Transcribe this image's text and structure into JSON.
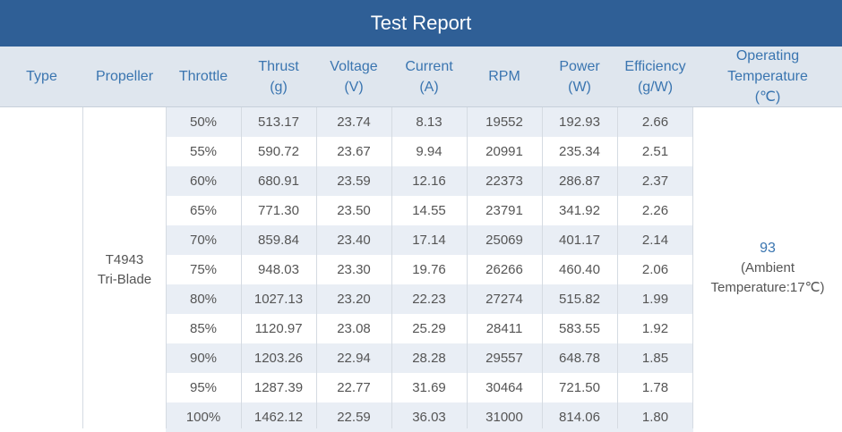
{
  "title": "Test Report",
  "headers": {
    "type": [
      "Type"
    ],
    "propeller": [
      "Propeller"
    ],
    "throttle": [
      "Throttle"
    ],
    "thrust": [
      "Thrust",
      "(g)"
    ],
    "voltage": [
      "Voltage",
      "(V)"
    ],
    "current": [
      "Current",
      "(A)"
    ],
    "rpm": [
      "RPM"
    ],
    "power": [
      "Power",
      "(W)"
    ],
    "efficiency": [
      "Efficiency",
      "(g/W)"
    ],
    "temperature": [
      "Operating",
      "Temperature",
      "(℃)"
    ]
  },
  "type_value": "",
  "propeller": [
    "T4943",
    "Tri-Blade"
  ],
  "temperature": {
    "value": "93",
    "ambient_line1": "(Ambient",
    "ambient_line2": "Temperature:17℃)"
  },
  "rows": [
    {
      "throttle": "50%",
      "thrust": "513.17",
      "voltage": "23.74",
      "current": "8.13",
      "rpm": "19552",
      "power": "192.93",
      "efficiency": "2.66"
    },
    {
      "throttle": "55%",
      "thrust": "590.72",
      "voltage": "23.67",
      "current": "9.94",
      "rpm": "20991",
      "power": "235.34",
      "efficiency": "2.51"
    },
    {
      "throttle": "60%",
      "thrust": "680.91",
      "voltage": "23.59",
      "current": "12.16",
      "rpm": "22373",
      "power": "286.87",
      "efficiency": "2.37"
    },
    {
      "throttle": "65%",
      "thrust": "771.30",
      "voltage": "23.50",
      "current": "14.55",
      "rpm": "23791",
      "power": "341.92",
      "efficiency": "2.26"
    },
    {
      "throttle": "70%",
      "thrust": "859.84",
      "voltage": "23.40",
      "current": "17.14",
      "rpm": "25069",
      "power": "401.17",
      "efficiency": "2.14"
    },
    {
      "throttle": "75%",
      "thrust": "948.03",
      "voltage": "23.30",
      "current": "19.76",
      "rpm": "26266",
      "power": "460.40",
      "efficiency": "2.06"
    },
    {
      "throttle": "80%",
      "thrust": "1027.13",
      "voltage": "23.20",
      "current": "22.23",
      "rpm": "27274",
      "power": "515.82",
      "efficiency": "1.99"
    },
    {
      "throttle": "85%",
      "thrust": "1120.97",
      "voltage": "23.08",
      "current": "25.29",
      "rpm": "28411",
      "power": "583.55",
      "efficiency": "1.92"
    },
    {
      "throttle": "90%",
      "thrust": "1203.26",
      "voltage": "22.94",
      "current": "28.28",
      "rpm": "29557",
      "power": "648.78",
      "efficiency": "1.85"
    },
    {
      "throttle": "95%",
      "thrust": "1287.39",
      "voltage": "22.77",
      "current": "31.69",
      "rpm": "30464",
      "power": "721.50",
      "efficiency": "1.78"
    },
    {
      "throttle": "100%",
      "thrust": "1462.12",
      "voltage": "22.59",
      "current": "36.03",
      "rpm": "31000",
      "power": "814.06",
      "efficiency": "1.80"
    }
  ],
  "colors": {
    "title_bar": "#2f5f96",
    "header_bg": "#dfe6ee",
    "header_text": "#3a75b0",
    "row_stripe": "#e9eef5",
    "cell_text": "#555555",
    "temperature_value": "#3a75b0"
  }
}
